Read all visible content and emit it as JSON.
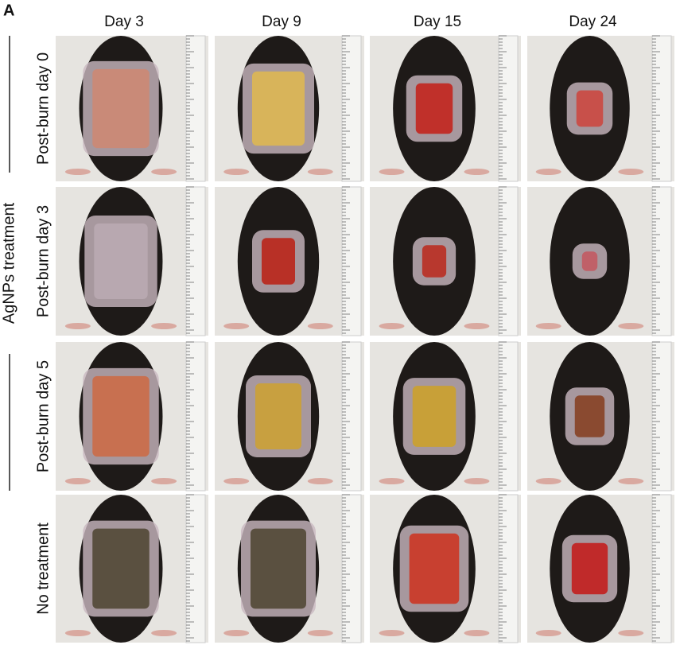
{
  "panel_label": "A",
  "group_label": "AgNPs treatment",
  "columns": [
    "Day 3",
    "Day 9",
    "Day 15",
    "Day 24"
  ],
  "rows": [
    "Post-burn day 0",
    "Post-burn day 3",
    "Post-burn day 5",
    "No treatment"
  ]
}
